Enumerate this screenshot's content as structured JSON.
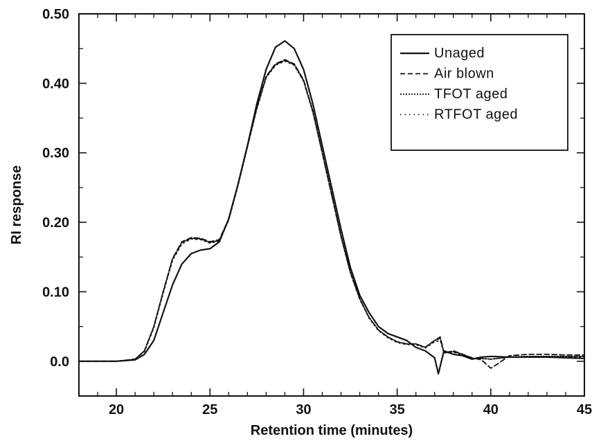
{
  "chart_data": {
    "type": "line",
    "xlabel": "Retention time (minutes)",
    "ylabel": "RI response",
    "xlim": [
      18,
      45
    ],
    "ylim": [
      -0.05,
      0.5
    ],
    "xticks": [
      20,
      25,
      30,
      35,
      40,
      45
    ],
    "xtick_labels": [
      "20",
      "25",
      "30",
      "35",
      "40",
      "45"
    ],
    "yticks": [
      0.0,
      0.1,
      0.2,
      0.3,
      0.4,
      0.5
    ],
    "ytick_labels": [
      "0.0",
      "0.10",
      "0.20",
      "0.30",
      "0.40",
      "0.50"
    ],
    "grid": false,
    "legend_position": "top-right",
    "series": [
      {
        "name": "Unaged",
        "style": "solid",
        "x": [
          18,
          20,
          21,
          21.5,
          22,
          22.5,
          23,
          23.5,
          24,
          24.5,
          25,
          25.5,
          26,
          26.5,
          27,
          27.5,
          28,
          28.5,
          29,
          29.5,
          30,
          30.5,
          31,
          31.5,
          32,
          32.5,
          33,
          33.5,
          34,
          34.5,
          35,
          35.5,
          36,
          36.5,
          37,
          37.2,
          37.5,
          38,
          38.5,
          39,
          39.5,
          40,
          41,
          42,
          43,
          44,
          45
        ],
        "y": [
          0.0,
          0.0,
          0.002,
          0.01,
          0.03,
          0.07,
          0.11,
          0.14,
          0.155,
          0.16,
          0.162,
          0.172,
          0.205,
          0.255,
          0.31,
          0.37,
          0.42,
          0.452,
          0.461,
          0.45,
          0.42,
          0.37,
          0.31,
          0.25,
          0.19,
          0.135,
          0.095,
          0.07,
          0.05,
          0.04,
          0.035,
          0.03,
          0.02,
          0.015,
          0.005,
          -0.018,
          0.015,
          0.01,
          0.008,
          0.003,
          0.006,
          0.007,
          0.006,
          0.006,
          0.006,
          0.005,
          0.004
        ]
      },
      {
        "name": "Air blown",
        "style": "dashed",
        "x": [
          18,
          20,
          21,
          21.5,
          22,
          22.5,
          23,
          23.5,
          24,
          24.5,
          25,
          25.5,
          26,
          26.5,
          27,
          27.5,
          28,
          28.5,
          29,
          29.5,
          30,
          30.5,
          31,
          31.5,
          32,
          32.5,
          33,
          33.5,
          34,
          34.5,
          35,
          35.5,
          36,
          36.5,
          37,
          37.3,
          37.5,
          38,
          38.5,
          39,
          39.5,
          40,
          40.3,
          41,
          42,
          43,
          44,
          45
        ],
        "y": [
          0.0,
          0.0,
          0.003,
          0.015,
          0.05,
          0.1,
          0.148,
          0.172,
          0.178,
          0.177,
          0.172,
          0.175,
          0.205,
          0.255,
          0.31,
          0.365,
          0.41,
          0.428,
          0.434,
          0.428,
          0.405,
          0.36,
          0.3,
          0.24,
          0.18,
          0.128,
          0.09,
          0.063,
          0.045,
          0.035,
          0.028,
          0.025,
          0.025,
          0.02,
          0.03,
          0.035,
          0.012,
          0.015,
          0.01,
          0.005,
          0.002,
          -0.01,
          -0.005,
          0.008,
          0.01,
          0.01,
          0.009,
          0.009
        ]
      },
      {
        "name": "TFOT aged",
        "style": "dotted",
        "x": [
          18,
          20,
          21,
          21.5,
          22,
          22.5,
          23,
          23.5,
          24,
          24.5,
          25,
          25.5,
          26,
          26.5,
          27,
          27.5,
          28,
          28.5,
          29,
          29.5,
          30,
          30.5,
          31,
          31.5,
          32,
          32.5,
          33,
          33.5,
          34,
          34.5,
          35,
          35.5,
          36,
          36.5,
          37,
          37.3,
          37.5,
          38,
          38.5,
          39,
          39.5,
          40,
          41,
          42,
          43,
          44,
          45
        ],
        "y": [
          0.0,
          0.0,
          0.003,
          0.015,
          0.05,
          0.1,
          0.147,
          0.171,
          0.177,
          0.176,
          0.171,
          0.174,
          0.204,
          0.254,
          0.309,
          0.364,
          0.409,
          0.427,
          0.433,
          0.427,
          0.404,
          0.359,
          0.3,
          0.24,
          0.18,
          0.128,
          0.09,
          0.063,
          0.045,
          0.035,
          0.028,
          0.025,
          0.025,
          0.02,
          0.03,
          0.033,
          0.012,
          0.014,
          0.01,
          0.004,
          0.004,
          0.003,
          0.006,
          0.007,
          0.007,
          0.007,
          0.007
        ]
      },
      {
        "name": "RTFOT aged",
        "style": "sparse-dotted",
        "x": [
          18,
          20,
          21,
          21.5,
          22,
          22.5,
          23,
          23.5,
          24,
          24.5,
          25,
          25.5,
          26,
          26.5,
          27,
          27.5,
          28,
          28.5,
          29,
          29.5,
          30,
          30.5,
          31,
          31.5,
          32,
          32.5,
          33,
          33.5,
          34,
          34.5,
          35,
          35.5,
          36,
          36.5,
          37,
          37.3,
          37.5,
          38,
          38.5,
          39,
          39.5,
          40,
          41,
          42,
          43,
          44,
          45
        ],
        "y": [
          0.0,
          0.0,
          0.003,
          0.014,
          0.048,
          0.098,
          0.145,
          0.169,
          0.176,
          0.175,
          0.17,
          0.173,
          0.203,
          0.253,
          0.308,
          0.363,
          0.408,
          0.426,
          0.432,
          0.426,
          0.403,
          0.358,
          0.299,
          0.239,
          0.179,
          0.127,
          0.089,
          0.062,
          0.044,
          0.034,
          0.027,
          0.024,
          0.024,
          0.019,
          0.028,
          0.03,
          0.012,
          0.013,
          0.009,
          0.004,
          0.004,
          0.003,
          0.006,
          0.006,
          0.006,
          0.006,
          0.006
        ]
      }
    ]
  }
}
